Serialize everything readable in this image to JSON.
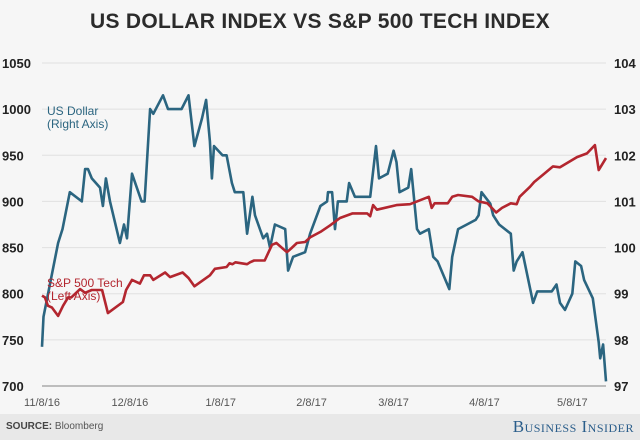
{
  "chart_data": {
    "type": "line",
    "title": "US DOLLAR INDEX VS S&P 500 TECH INDEX",
    "x_unit": "days since 11/8/16",
    "x_ticks": [
      {
        "day": 0,
        "label": "11/8/16"
      },
      {
        "day": 30,
        "label": "12/8/16"
      },
      {
        "day": 61,
        "label": "1/8/17"
      },
      {
        "day": 92,
        "label": "2/8/17"
      },
      {
        "day": 120,
        "label": "3/8/17"
      },
      {
        "day": 151,
        "label": "4/8/17"
      },
      {
        "day": 181,
        "label": "5/8/17"
      }
    ],
    "left_axis": {
      "ylim": [
        700,
        1050
      ],
      "ticks": [
        "700",
        "750",
        "800",
        "850",
        "900",
        "950",
        "1000",
        "1050"
      ]
    },
    "right_axis": {
      "ylim": [
        97,
        104
      ],
      "ticks": [
        "97",
        "98",
        "99",
        "100",
        "101",
        "102",
        "103",
        "104"
      ]
    },
    "grid": true,
    "series": [
      {
        "name": "US Dollar",
        "label_line1": "US Dollar",
        "label_line2": "(Right Axis)",
        "axis": "right",
        "color": "#2b6580",
        "points": [
          [
            0,
            97.85
          ],
          [
            0.5,
            98.5
          ],
          [
            5.5,
            100.1
          ],
          [
            7,
            100.4
          ],
          [
            9.5,
            101.2
          ],
          [
            13.6,
            101.0
          ],
          [
            14.7,
            101.7
          ],
          [
            15.7,
            101.7
          ],
          [
            17,
            101.5
          ],
          [
            19.8,
            101.3
          ],
          [
            20.8,
            100.9
          ],
          [
            21.8,
            101.5
          ],
          [
            23.2,
            101.0
          ],
          [
            26.6,
            100.1
          ],
          [
            28,
            100.5
          ],
          [
            29,
            100.2
          ],
          [
            30.7,
            101.6
          ],
          [
            34,
            101.0
          ],
          [
            35,
            101.0
          ],
          [
            36.9,
            103.0
          ],
          [
            38,
            102.9
          ],
          [
            41.3,
            103.3
          ],
          [
            43,
            103.0
          ],
          [
            47.6,
            103.0
          ],
          [
            50,
            103.3
          ],
          [
            52,
            102.2
          ],
          [
            54.6,
            102.8
          ],
          [
            56,
            103.2
          ],
          [
            57.3,
            102.3
          ],
          [
            58,
            101.5
          ],
          [
            58.7,
            102.2
          ],
          [
            61.6,
            102.0
          ],
          [
            63,
            102.0
          ],
          [
            64.8,
            101.4
          ],
          [
            65.8,
            101.2
          ],
          [
            68.7,
            101.2
          ],
          [
            70,
            100.3
          ],
          [
            71.8,
            101.1
          ],
          [
            72.7,
            100.7
          ],
          [
            75.5,
            100.2
          ],
          [
            76.8,
            100.3
          ],
          [
            77.8,
            100.0
          ],
          [
            79.5,
            100.5
          ],
          [
            83,
            100.4
          ],
          [
            84,
            99.5
          ],
          [
            85.7,
            99.8
          ],
          [
            89.8,
            99.9
          ],
          [
            91.5,
            100.3
          ],
          [
            95,
            100.9
          ],
          [
            97.3,
            101.0
          ],
          [
            97.6,
            101.2
          ],
          [
            99,
            101.2
          ],
          [
            100,
            100.4
          ],
          [
            101,
            101.0
          ],
          [
            104,
            101.0
          ],
          [
            104.8,
            101.4
          ],
          [
            106.8,
            101.1
          ],
          [
            112,
            101.1
          ],
          [
            114,
            102.2
          ],
          [
            115,
            101.5
          ],
          [
            118,
            101.6
          ],
          [
            120,
            102.1
          ],
          [
            121,
            101.85
          ],
          [
            122,
            101.2
          ],
          [
            125,
            101.3
          ],
          [
            126,
            101.7
          ],
          [
            128,
            100.4
          ],
          [
            129,
            100.3
          ],
          [
            132,
            100.4
          ],
          [
            133.5,
            99.8
          ],
          [
            135,
            99.7
          ],
          [
            139,
            99.1
          ],
          [
            140,
            99.8
          ],
          [
            142,
            100.4
          ],
          [
            145,
            100.5
          ],
          [
            148,
            100.6
          ],
          [
            149,
            100.7
          ],
          [
            150,
            101.2
          ],
          [
            153,
            100.95
          ],
          [
            154,
            100.7
          ],
          [
            156,
            100.5
          ],
          [
            160,
            100.3
          ],
          [
            161,
            99.5
          ],
          [
            162,
            99.7
          ],
          [
            164,
            99.9
          ],
          [
            167.6,
            98.8
          ],
          [
            169,
            99.05
          ],
          [
            174,
            99.05
          ],
          [
            175.6,
            99.2
          ],
          [
            176.8,
            98.8
          ],
          [
            178.5,
            98.65
          ],
          [
            181,
            99.0
          ],
          [
            182,
            99.7
          ],
          [
            184,
            99.6
          ],
          [
            185,
            99.3
          ],
          [
            188,
            98.9
          ],
          [
            190,
            97.95
          ],
          [
            190.5,
            97.6
          ],
          [
            191.5,
            97.9
          ],
          [
            192.5,
            97.1
          ]
        ]
      },
      {
        "name": "S&P 500 Tech",
        "label_line1": "S&P 500 Tech",
        "label_line2": "(Left Axis)",
        "axis": "left",
        "color": "#b3262f",
        "points": [
          [
            0,
            798
          ],
          [
            1,
            796
          ],
          [
            2,
            787
          ],
          [
            3.4,
            785
          ],
          [
            5.5,
            776
          ],
          [
            7.2,
            787
          ],
          [
            8.9,
            796
          ],
          [
            10,
            796
          ],
          [
            13,
            805
          ],
          [
            14.7,
            801
          ],
          [
            17,
            804
          ],
          [
            20.5,
            804
          ],
          [
            22.5,
            779
          ],
          [
            27.6,
            791
          ],
          [
            28.7,
            804
          ],
          [
            30.7,
            815
          ],
          [
            33.4,
            811
          ],
          [
            34.8,
            820
          ],
          [
            36.9,
            820
          ],
          [
            38,
            815
          ],
          [
            42,
            823
          ],
          [
            43.7,
            818
          ],
          [
            48,
            823
          ],
          [
            50,
            817
          ],
          [
            52,
            808
          ],
          [
            57.3,
            820
          ],
          [
            59,
            827
          ],
          [
            63,
            829
          ],
          [
            64,
            833
          ],
          [
            65,
            832
          ],
          [
            66,
            834
          ],
          [
            70,
            832
          ],
          [
            71,
            834
          ],
          [
            72.4,
            836
          ],
          [
            76,
            836
          ],
          [
            78.5,
            853
          ],
          [
            80,
            855
          ],
          [
            83.6,
            845
          ],
          [
            85,
            849
          ],
          [
            87,
            855
          ],
          [
            89.8,
            856
          ],
          [
            91.5,
            861
          ],
          [
            95,
            867
          ],
          [
            98.3,
            874
          ],
          [
            101.7,
            882
          ],
          [
            106,
            887
          ],
          [
            111,
            887
          ],
          [
            112,
            884
          ],
          [
            113,
            896
          ],
          [
            114.3,
            891
          ],
          [
            121,
            896
          ],
          [
            125.6,
            897
          ],
          [
            132,
            905
          ],
          [
            133,
            893
          ],
          [
            134,
            898
          ],
          [
            138.5,
            898
          ],
          [
            140,
            905
          ],
          [
            142,
            907
          ],
          [
            146.8,
            905
          ],
          [
            149,
            900
          ],
          [
            152,
            898
          ],
          [
            155,
            888
          ],
          [
            157,
            893
          ],
          [
            160,
            898
          ],
          [
            162,
            897
          ],
          [
            163,
            905
          ],
          [
            166.6,
            916
          ],
          [
            168,
            921
          ],
          [
            171,
            929
          ],
          [
            174.4,
            938
          ],
          [
            176.8,
            937
          ],
          [
            182.6,
            948
          ],
          [
            186,
            952
          ],
          [
            188.7,
            961
          ],
          [
            190,
            934
          ],
          [
            192.5,
            947
          ]
        ]
      }
    ]
  },
  "footer": {
    "source_label": "SOURCE:",
    "source_value": "Bloomberg",
    "brand": "Business Insider"
  }
}
